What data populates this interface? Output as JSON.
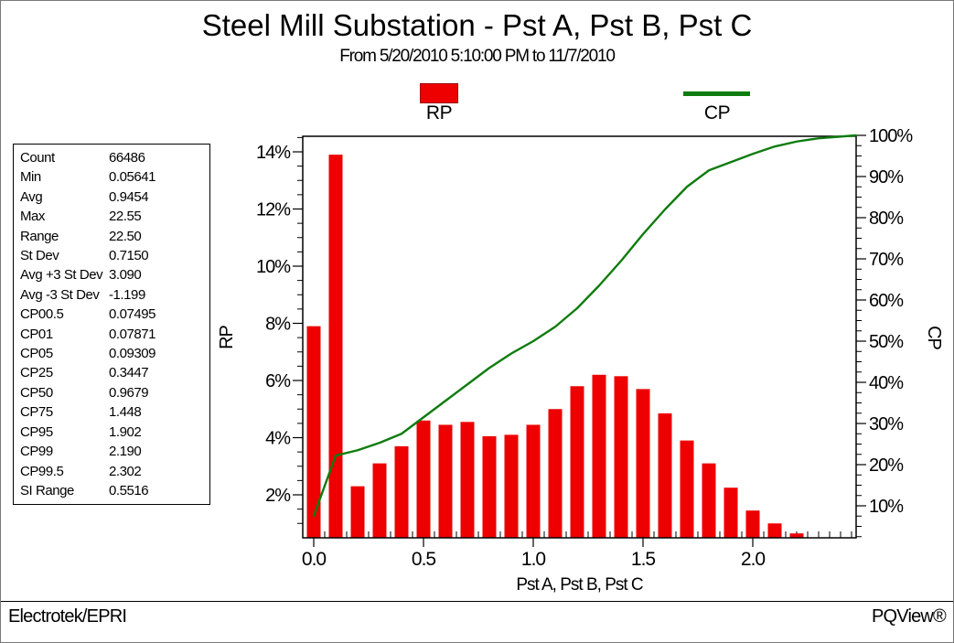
{
  "title": "Steel Mill Substation - Pst A, Pst B, Pst C",
  "subtitle": "From 5/20/2010 5:10:00 PM to 11/7/2010",
  "legend": {
    "rp_label": "RP",
    "cp_label": "CP",
    "position": "top-center"
  },
  "colors": {
    "bar_red": "#ee0000",
    "curve_green": "#0e7c0e",
    "text": "#000000",
    "background": "#ffffff"
  },
  "stats": {
    "rows": [
      {
        "label": "Count",
        "value": "66486"
      },
      {
        "label": "Min",
        "value": "0.05641"
      },
      {
        "label": "Avg",
        "value": "0.9454"
      },
      {
        "label": "Max",
        "value": "22.55"
      },
      {
        "label": "Range",
        "value": "22.50"
      },
      {
        "label": "St Dev",
        "value": "0.7150"
      },
      {
        "label": "Avg +3 St Dev",
        "value": "3.090"
      },
      {
        "label": "Avg -3 St Dev",
        "value": "-1.199"
      },
      {
        "label": "CP00.5",
        "value": "0.07495"
      },
      {
        "label": "CP01",
        "value": "0.07871"
      },
      {
        "label": "CP05",
        "value": "0.09309"
      },
      {
        "label": "CP25",
        "value": "0.3447"
      },
      {
        "label": "CP50",
        "value": "0.9679"
      },
      {
        "label": "CP75",
        "value": "1.448"
      },
      {
        "label": "CP95",
        "value": "1.902"
      },
      {
        "label": "CP99",
        "value": "2.190"
      },
      {
        "label": "CP99.5",
        "value": "2.302"
      },
      {
        "label": "SI Range",
        "value": "0.5516"
      }
    ]
  },
  "chart_data": {
    "type": "bar",
    "title": "Steel Mill Substation - Pst A, Pst B, Pst C",
    "subtitle": "From 5/20/2010 5:10:00 PM to 11/7/2010",
    "xlabel": "Pst A, Pst B, Pst C",
    "left_axis": {
      "label": "RP",
      "tick_values": [
        2,
        4,
        6,
        8,
        10,
        12,
        14
      ],
      "tick_labels": [
        "2%",
        "4%",
        "6%",
        "8%",
        "10%",
        "12%",
        "14%"
      ],
      "minor_step": 0.5,
      "range": [
        0.5,
        14.55
      ]
    },
    "right_axis": {
      "label": "CP",
      "tick_values": [
        10,
        20,
        30,
        40,
        50,
        60,
        70,
        80,
        90,
        100
      ],
      "tick_labels": [
        "10%",
        "20%",
        "30%",
        "40%",
        "50%",
        "60%",
        "70%",
        "80%",
        "90%",
        "100%"
      ],
      "minor_step": 2.5,
      "range": [
        2.2,
        99.8
      ]
    },
    "x_axis": {
      "tick_values": [
        0.0,
        0.5,
        1.0,
        1.5,
        2.0
      ],
      "tick_labels": [
        "0.0",
        "0.5",
        "1.0",
        "1.5",
        "2.0"
      ],
      "minor_step": 0.05,
      "range": [
        -0.05,
        2.47
      ]
    },
    "series": [
      {
        "name": "RP",
        "type": "bar",
        "color": "#ee0000",
        "x": [
          0.0,
          0.1,
          0.2,
          0.3,
          0.4,
          0.5,
          0.6,
          0.7,
          0.8,
          0.9,
          1.0,
          1.1,
          1.2,
          1.3,
          1.4,
          1.5,
          1.6,
          1.7,
          1.8,
          1.9,
          2.0,
          2.1,
          2.2
        ],
        "values": [
          7.9,
          13.9,
          2.3,
          3.1,
          3.7,
          4.6,
          4.45,
          4.55,
          4.05,
          4.1,
          4.45,
          5.0,
          5.8,
          6.2,
          6.15,
          5.7,
          4.85,
          3.9,
          3.1,
          2.25,
          1.45,
          1.0,
          0.65
        ]
      },
      {
        "name": "CP",
        "type": "line",
        "color": "#0e7c0e",
        "x": [
          0.0,
          0.1,
          0.2,
          0.3,
          0.4,
          0.5,
          0.6,
          0.7,
          0.8,
          0.9,
          1.0,
          1.1,
          1.2,
          1.3,
          1.4,
          1.5,
          1.6,
          1.7,
          1.8,
          1.9,
          2.0,
          2.1,
          2.2,
          2.3,
          2.47
        ],
        "values": [
          7.5,
          22.2,
          23.5,
          25.3,
          27.5,
          31.5,
          35.5,
          39.5,
          43.5,
          47.0,
          50.0,
          53.5,
          58.0,
          63.5,
          69.5,
          76.0,
          82.0,
          87.5,
          91.5,
          93.5,
          95.5,
          97.3,
          98.5,
          99.3,
          100.0
        ]
      }
    ],
    "grid": false,
    "legend_position": "top-center"
  },
  "footer": {
    "left": "Electrotek/EPRI",
    "right": "PQView®"
  }
}
